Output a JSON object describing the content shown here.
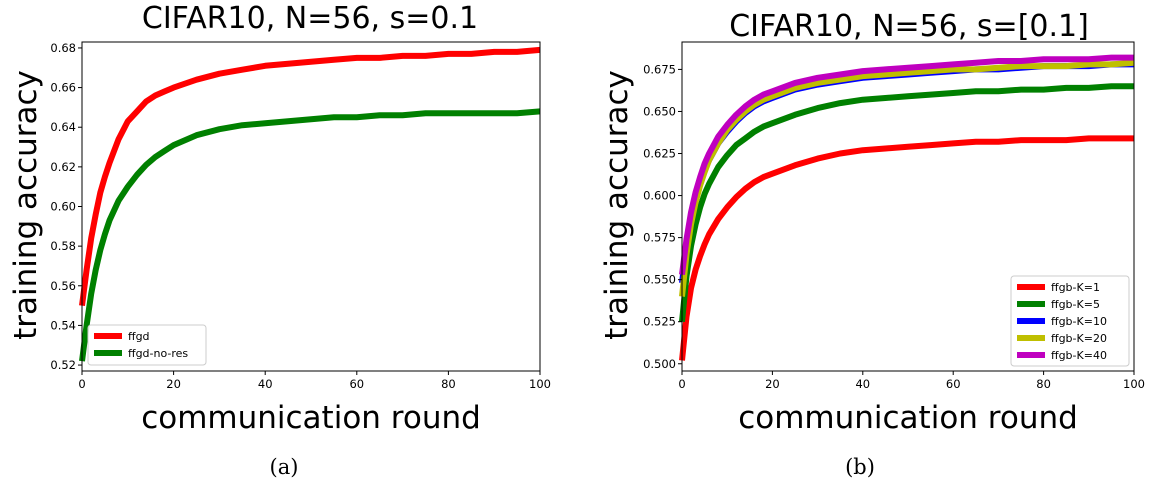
{
  "chart_data": [
    {
      "type": "line",
      "title": "CIFAR10, N=56, s=0.1",
      "xlabel": "communication round",
      "ylabel": "training accuracy",
      "caption": "(a)",
      "xlim": [
        0,
        100
      ],
      "ylim": [
        0.517,
        0.683
      ],
      "xticks": [
        0,
        20,
        40,
        60,
        80,
        100
      ],
      "yticks": [
        0.52,
        0.54,
        0.56,
        0.58,
        0.6,
        0.62,
        0.64,
        0.66,
        0.68
      ],
      "ytick_labels": [
        "0.52",
        "0.54",
        "0.56",
        "0.58",
        "0.60",
        "0.62",
        "0.64",
        "0.66",
        "0.68"
      ],
      "grid": false,
      "legend": "lower-left",
      "series": [
        {
          "name": "ffgd",
          "color": "#ff0000",
          "x": [
            0,
            1,
            2,
            3,
            4,
            5,
            6,
            8,
            10,
            12,
            14,
            16,
            18,
            20,
            25,
            30,
            35,
            40,
            45,
            50,
            55,
            60,
            65,
            70,
            75,
            80,
            85,
            90,
            95,
            100
          ],
          "y": [
            0.55,
            0.568,
            0.584,
            0.596,
            0.607,
            0.615,
            0.622,
            0.634,
            0.643,
            0.648,
            0.653,
            0.656,
            0.658,
            0.66,
            0.664,
            0.667,
            0.669,
            0.671,
            0.672,
            0.673,
            0.674,
            0.675,
            0.675,
            0.676,
            0.676,
            0.677,
            0.677,
            0.678,
            0.678,
            0.679
          ]
        },
        {
          "name": "ffgd-no-res",
          "color": "#008000",
          "x": [
            0,
            1,
            2,
            3,
            4,
            5,
            6,
            8,
            10,
            12,
            14,
            16,
            18,
            20,
            25,
            30,
            35,
            40,
            45,
            50,
            55,
            60,
            65,
            70,
            75,
            80,
            85,
            90,
            95,
            100
          ],
          "y": [
            0.522,
            0.54,
            0.556,
            0.568,
            0.578,
            0.586,
            0.593,
            0.603,
            0.61,
            0.616,
            0.621,
            0.625,
            0.628,
            0.631,
            0.636,
            0.639,
            0.641,
            0.642,
            0.643,
            0.644,
            0.645,
            0.645,
            0.646,
            0.646,
            0.647,
            0.647,
            0.647,
            0.647,
            0.647,
            0.648
          ]
        }
      ]
    },
    {
      "type": "line",
      "title": "CIFAR10, N=56, s=[0.1]",
      "xlabel": "communication round",
      "ylabel": "training accuracy",
      "caption": "(b)",
      "xlim": [
        0,
        100
      ],
      "ylim": [
        0.4957,
        0.6913
      ],
      "xticks": [
        0,
        20,
        40,
        60,
        80,
        100
      ],
      "yticks": [
        0.5,
        0.525,
        0.55,
        0.575,
        0.6,
        0.625,
        0.65,
        0.675
      ],
      "ytick_labels": [
        "0.500",
        "0.525",
        "0.550",
        "0.575",
        "0.600",
        "0.625",
        "0.650",
        "0.675"
      ],
      "grid": false,
      "legend": "lower-right",
      "series": [
        {
          "name": "ffgb-K=1",
          "color": "#ff0000",
          "x": [
            0,
            1,
            2,
            3,
            4,
            5,
            6,
            8,
            10,
            12,
            14,
            16,
            18,
            20,
            25,
            30,
            35,
            40,
            45,
            50,
            55,
            60,
            65,
            70,
            75,
            80,
            85,
            90,
            95,
            100
          ],
          "y": [
            0.502,
            0.528,
            0.545,
            0.556,
            0.564,
            0.571,
            0.577,
            0.586,
            0.593,
            0.599,
            0.604,
            0.608,
            0.611,
            0.613,
            0.618,
            0.622,
            0.625,
            0.627,
            0.628,
            0.629,
            0.63,
            0.631,
            0.632,
            0.632,
            0.633,
            0.633,
            0.633,
            0.634,
            0.634,
            0.634
          ]
        },
        {
          "name": "ffgb-K=5",
          "color": "#008000",
          "x": [
            0,
            1,
            2,
            3,
            4,
            5,
            6,
            8,
            10,
            12,
            14,
            16,
            18,
            20,
            25,
            30,
            35,
            40,
            45,
            50,
            55,
            60,
            65,
            70,
            75,
            80,
            85,
            90,
            95,
            100
          ],
          "y": [
            0.525,
            0.552,
            0.57,
            0.583,
            0.593,
            0.601,
            0.607,
            0.617,
            0.624,
            0.63,
            0.634,
            0.638,
            0.641,
            0.643,
            0.648,
            0.652,
            0.655,
            0.657,
            0.658,
            0.659,
            0.66,
            0.661,
            0.662,
            0.662,
            0.663,
            0.663,
            0.664,
            0.664,
            0.665,
            0.665
          ]
        },
        {
          "name": "ffgb-K=10",
          "color": "#0000ff",
          "x": [
            0,
            1,
            2,
            3,
            4,
            5,
            6,
            8,
            10,
            12,
            14,
            16,
            18,
            20,
            25,
            30,
            35,
            40,
            45,
            50,
            55,
            60,
            65,
            70,
            75,
            80,
            85,
            90,
            95,
            100
          ],
          "y": [
            0.548,
            0.57,
            0.586,
            0.598,
            0.607,
            0.615,
            0.621,
            0.631,
            0.638,
            0.644,
            0.649,
            0.653,
            0.656,
            0.658,
            0.663,
            0.666,
            0.668,
            0.67,
            0.671,
            0.672,
            0.673,
            0.674,
            0.675,
            0.675,
            0.676,
            0.677,
            0.677,
            0.677,
            0.678,
            0.678
          ]
        },
        {
          "name": "ffgb-K=20",
          "color": "#bfbf00",
          "x": [
            0,
            1,
            2,
            3,
            4,
            5,
            6,
            8,
            10,
            12,
            14,
            16,
            18,
            20,
            25,
            30,
            35,
            40,
            45,
            50,
            55,
            60,
            65,
            70,
            75,
            80,
            85,
            90,
            95,
            100
          ],
          "y": [
            0.54,
            0.565,
            0.583,
            0.596,
            0.606,
            0.614,
            0.621,
            0.631,
            0.639,
            0.645,
            0.65,
            0.654,
            0.657,
            0.659,
            0.664,
            0.667,
            0.669,
            0.671,
            0.672,
            0.673,
            0.674,
            0.675,
            0.675,
            0.676,
            0.677,
            0.677,
            0.677,
            0.678,
            0.678,
            0.679
          ]
        },
        {
          "name": "ffgb-K=40",
          "color": "#bf00bf",
          "x": [
            0,
            1,
            2,
            3,
            4,
            5,
            6,
            8,
            10,
            12,
            14,
            16,
            18,
            20,
            25,
            30,
            35,
            40,
            45,
            50,
            55,
            60,
            65,
            70,
            75,
            80,
            85,
            90,
            95,
            100
          ],
          "y": [
            0.553,
            0.574,
            0.59,
            0.602,
            0.611,
            0.619,
            0.625,
            0.635,
            0.642,
            0.648,
            0.653,
            0.657,
            0.66,
            0.662,
            0.667,
            0.67,
            0.672,
            0.674,
            0.675,
            0.676,
            0.677,
            0.678,
            0.679,
            0.68,
            0.68,
            0.681,
            0.681,
            0.681,
            0.682,
            0.682
          ]
        }
      ]
    }
  ]
}
